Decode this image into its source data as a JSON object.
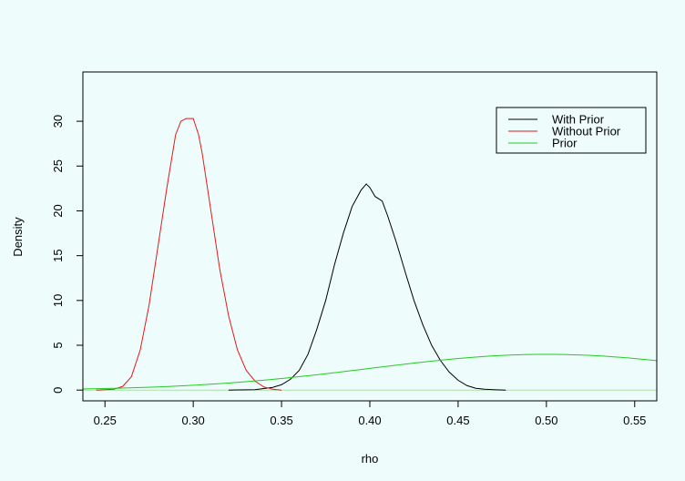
{
  "colors": {
    "background": "#eefcfb",
    "with_prior": "#000000",
    "without_prior": "#e31a1c",
    "prior": "#22cc22",
    "baseline": "#a8e0a8"
  },
  "chart_data": {
    "type": "line",
    "title": "",
    "xlabel": "rho",
    "ylabel": "Density",
    "xlim": [
      0.2375,
      0.5625
    ],
    "ylim": [
      -1.2,
      35.5
    ],
    "xticks": [
      0.25,
      0.3,
      0.35,
      0.4,
      0.45,
      0.5,
      0.55
    ],
    "xtick_labels": [
      "0.25",
      "0.30",
      "0.35",
      "0.40",
      "0.45",
      "0.50",
      "0.55"
    ],
    "yticks": [
      0,
      5,
      10,
      15,
      20,
      25,
      30
    ],
    "ytick_labels": [
      "0",
      "5",
      "10",
      "15",
      "20",
      "25",
      "30"
    ],
    "grid": false,
    "legend": {
      "position": "top-right",
      "entries": [
        "With Prior",
        "Without Prior",
        "Prior"
      ]
    },
    "series": [
      {
        "name": "With Prior",
        "color": "#000000",
        "points": [
          [
            0.32,
            0
          ],
          [
            0.335,
            0.05
          ],
          [
            0.345,
            0.3
          ],
          [
            0.35,
            0.6
          ],
          [
            0.355,
            1.2
          ],
          [
            0.36,
            2.2
          ],
          [
            0.365,
            4
          ],
          [
            0.37,
            6.8
          ],
          [
            0.375,
            10
          ],
          [
            0.38,
            14
          ],
          [
            0.385,
            17.5
          ],
          [
            0.39,
            20.5
          ],
          [
            0.395,
            22.3
          ],
          [
            0.398,
            23
          ],
          [
            0.4,
            22.6
          ],
          [
            0.403,
            21.6
          ],
          [
            0.407,
            21.1
          ],
          [
            0.41,
            19.5
          ],
          [
            0.415,
            16.5
          ],
          [
            0.42,
            13.2
          ],
          [
            0.425,
            10
          ],
          [
            0.43,
            7.3
          ],
          [
            0.435,
            5
          ],
          [
            0.44,
            3.3
          ],
          [
            0.445,
            2
          ],
          [
            0.45,
            1.1
          ],
          [
            0.455,
            0.5
          ],
          [
            0.46,
            0.2
          ],
          [
            0.465,
            0.1
          ],
          [
            0.47,
            0.05
          ],
          [
            0.477,
            0
          ]
        ]
      },
      {
        "name": "Without Prior",
        "color": "#e31a1c",
        "points": [
          [
            0.245,
            0
          ],
          [
            0.255,
            0.1
          ],
          [
            0.26,
            0.4
          ],
          [
            0.265,
            1.5
          ],
          [
            0.27,
            4.5
          ],
          [
            0.275,
            9.5
          ],
          [
            0.28,
            16
          ],
          [
            0.285,
            22.5
          ],
          [
            0.29,
            28.5
          ],
          [
            0.293,
            30
          ],
          [
            0.296,
            30.3
          ],
          [
            0.3,
            30.3
          ],
          [
            0.303,
            28.5
          ],
          [
            0.305,
            26.5
          ],
          [
            0.31,
            20
          ],
          [
            0.315,
            13.5
          ],
          [
            0.32,
            8.3
          ],
          [
            0.325,
            4.5
          ],
          [
            0.33,
            2.2
          ],
          [
            0.335,
            1
          ],
          [
            0.34,
            0.35
          ],
          [
            0.345,
            0.1
          ],
          [
            0.35,
            0
          ]
        ]
      },
      {
        "name": "Prior",
        "color": "#22cc22",
        "distribution": "normal",
        "mean": 0.5,
        "sd": 0.1
      }
    ]
  }
}
